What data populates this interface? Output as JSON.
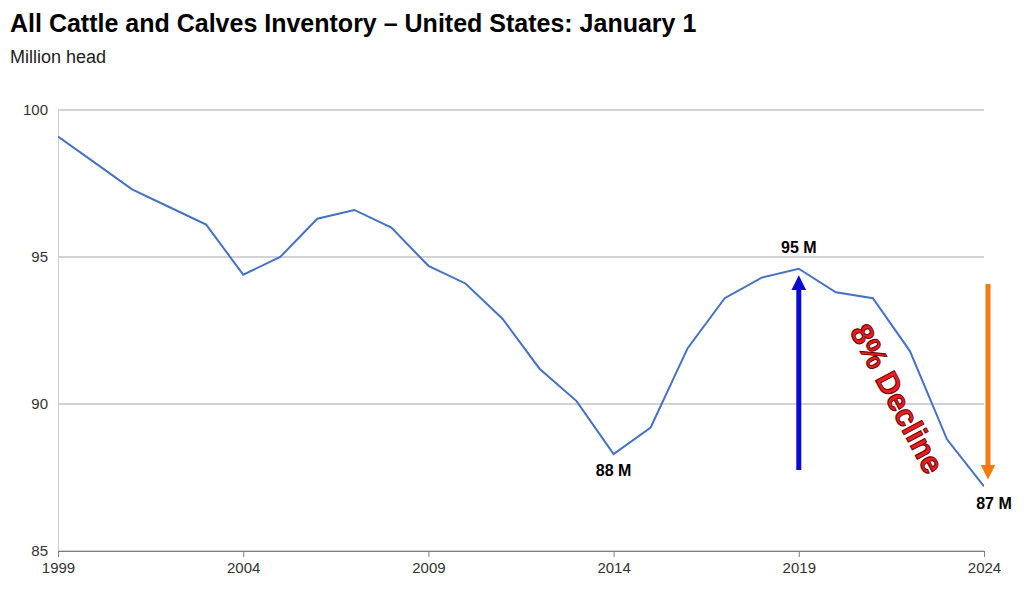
{
  "chart_data": {
    "type": "line",
    "title": "All Cattle and Calves Inventory – United States: January 1",
    "subtitle": "Million head",
    "x": [
      1999,
      2000,
      2001,
      2002,
      2003,
      2004,
      2005,
      2006,
      2007,
      2008,
      2009,
      2010,
      2011,
      2012,
      2013,
      2014,
      2015,
      2016,
      2017,
      2018,
      2019,
      2020,
      2021,
      2022,
      2023,
      2024
    ],
    "values": [
      99.1,
      98.2,
      97.3,
      96.7,
      96.1,
      94.4,
      95.0,
      96.3,
      96.6,
      96.0,
      94.7,
      94.1,
      92.9,
      91.2,
      90.1,
      88.3,
      89.2,
      91.9,
      93.6,
      94.3,
      94.6,
      93.8,
      93.6,
      91.8,
      88.8,
      87.2
    ],
    "color": "#4472c4",
    "xlim": [
      1999,
      2024
    ],
    "xticks": [
      1999,
      2004,
      2009,
      2014,
      2019,
      2024
    ],
    "ylim": [
      85,
      100
    ],
    "yticks": [
      85,
      90,
      95,
      100
    ],
    "grid": true,
    "annotations": [
      "95 M",
      "88 M",
      "87 M",
      "8% Decline"
    ]
  }
}
